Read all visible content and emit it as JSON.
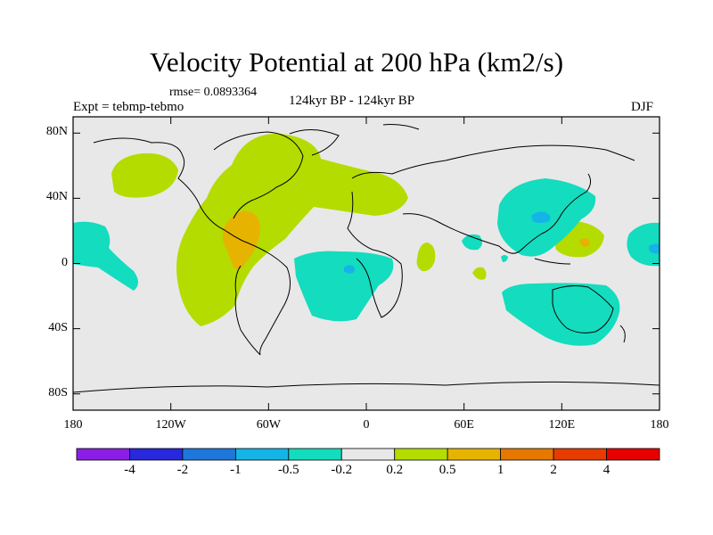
{
  "title": "Velocity Potential at 200 hPa (km2/s)",
  "rmse_label": "rmse= 0.0893364",
  "experiment_label": "Expt = tebmp-tebmo",
  "period_label": "124kyr BP - 124kyr BP",
  "season_label": "DJF",
  "map": {
    "background_color": "#e8e8e8",
    "lat_ticks": [
      {
        "value": 80,
        "label": "80N"
      },
      {
        "value": 40,
        "label": "40N"
      },
      {
        "value": 0,
        "label": "0"
      },
      {
        "value": -40,
        "label": "40S"
      },
      {
        "value": -80,
        "label": "80S"
      }
    ],
    "lon_ticks": [
      {
        "value": -180,
        "label": "180"
      },
      {
        "value": -120,
        "label": "120W"
      },
      {
        "value": -60,
        "label": "60W"
      },
      {
        "value": 0,
        "label": "0"
      },
      {
        "value": 60,
        "label": "60E"
      },
      {
        "value": 120,
        "label": "120E"
      },
      {
        "value": 180,
        "label": "180"
      }
    ]
  },
  "colorbar": {
    "colors": [
      "#8b1ee6",
      "#2828dc",
      "#1e78dc",
      "#14b4e6",
      "#14dcbe",
      "#e8e8e8",
      "#b4dc00",
      "#e6b400",
      "#e67800",
      "#e63c00",
      "#e60000"
    ],
    "labels": [
      "-4",
      "-2",
      "-1",
      "-0.5",
      "-0.2",
      "0.2",
      "0.5",
      "1",
      "2",
      "4"
    ]
  }
}
